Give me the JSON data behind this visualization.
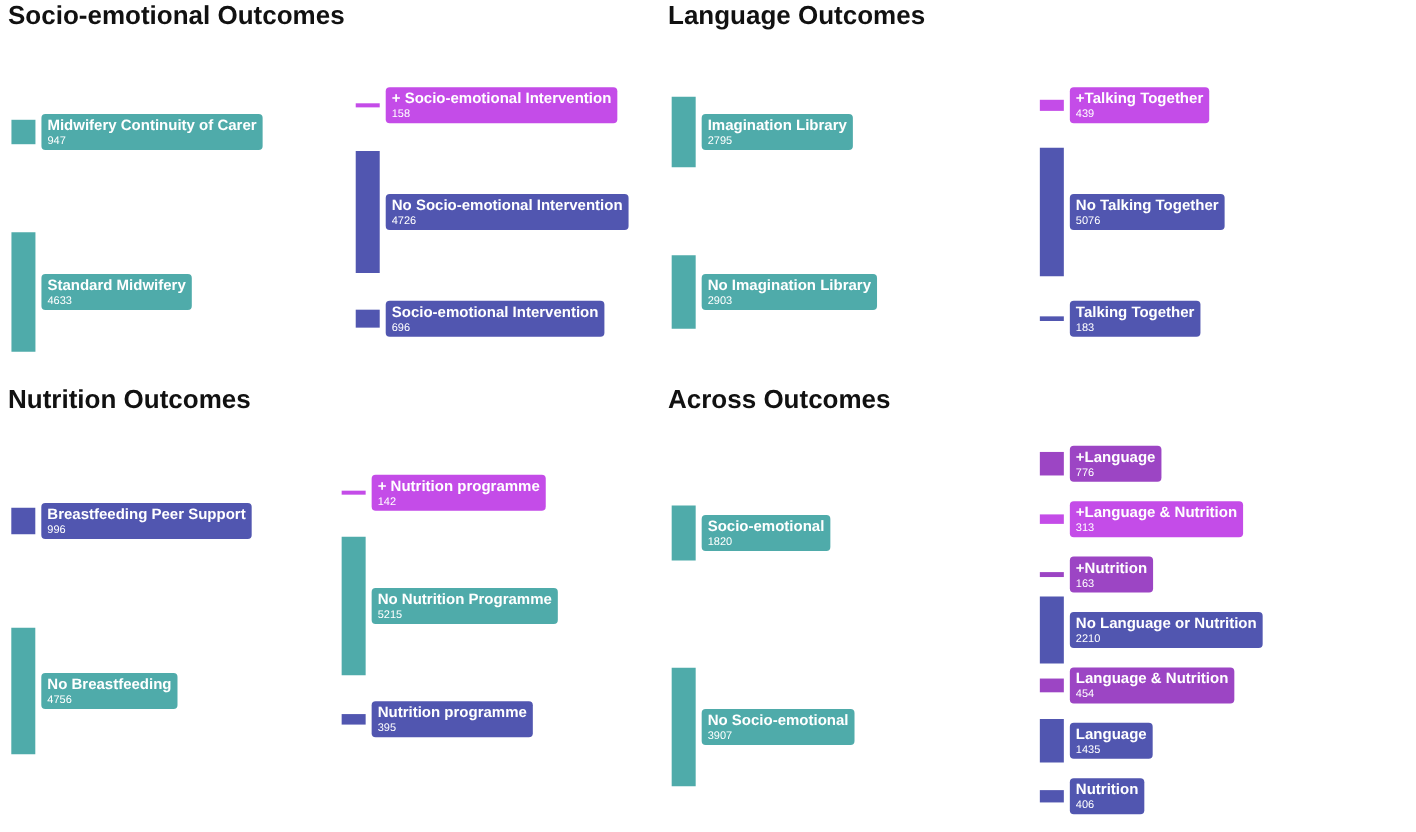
{
  "chart_data": [
    {
      "type": "other",
      "title": "Socio-emotional Outcomes",
      "categories": [
        "Midwifery Continuity of Carer",
        "Standard Midwifery",
        "+ Socio-emotional Intervention",
        "No Socio-emotional Intervention",
        "Socio-emotional Intervention"
      ],
      "data_labels": true,
      "series": [
        {
          "values": [
            947,
            4633,
            null,
            null,
            null
          ],
          "colors": [
            "#4fabaa",
            "#4fabaa",
            null,
            null,
            null
          ]
        },
        {
          "values": [
            null,
            null,
            158,
            4726,
            696
          ],
          "colors": [
            null,
            null,
            "#c44ce8",
            "#5156b0",
            "#5156b0"
          ]
        }
      ]
    },
    {
      "type": "other",
      "title": "Language Outcomes",
      "categories": [
        "Imagination Library",
        "No Imagination Library",
        "+Talking Together",
        "No Talking Together",
        "Talking Together"
      ],
      "data_labels": true,
      "series": [
        {
          "values": [
            2795,
            2903,
            null,
            null,
            null
          ],
          "colors": [
            "#4fabaa",
            "#4fabaa",
            null,
            null,
            null
          ]
        },
        {
          "values": [
            null,
            null,
            439,
            5076,
            183
          ],
          "colors": [
            null,
            null,
            "#c44ce8",
            "#5156b0",
            "#5156b0"
          ]
        }
      ]
    },
    {
      "type": "other",
      "title": "Nutrition Outcomes",
      "categories": [
        "Breastfeeding Peer Support",
        "No Breastfeeding",
        "+ Nutrition programme",
        "No Nutrition Programme",
        "Nutrition programme"
      ],
      "data_labels": true,
      "series": [
        {
          "values": [
            996,
            4756,
            null,
            null,
            null
          ],
          "colors": [
            "#5156b0",
            "#4fabaa",
            null,
            null,
            null
          ]
        },
        {
          "values": [
            null,
            null,
            142,
            5215,
            395
          ],
          "colors": [
            null,
            null,
            "#c44ce8",
            "#4fabaa",
            "#5156b0"
          ]
        }
      ]
    },
    {
      "type": "other",
      "title": "Across Outcomes",
      "categories": [
        "Socio-emotional",
        "No Socio-emotional",
        "+Language",
        "+Language & Nutrition",
        "+Nutrition",
        "No Language or Nutrition",
        "Language & Nutrition",
        "Language",
        "Nutrition"
      ],
      "data_labels": true,
      "series": [
        {
          "values": [
            1820,
            3907,
            null,
            null,
            null,
            null,
            null,
            null,
            null
          ],
          "colors": [
            "#4fabaa",
            "#4fabaa",
            null,
            null,
            null,
            null,
            null,
            null,
            null
          ]
        },
        {
          "values": [
            null,
            null,
            776,
            313,
            163,
            2210,
            454,
            1435,
            406
          ],
          "colors": [
            null,
            null,
            "#9c45c4",
            "#c44ce8",
            "#9c45c4",
            "#5156b0",
            "#9c45c4",
            "#5156b0",
            "#5156b0"
          ]
        }
      ]
    }
  ]
}
